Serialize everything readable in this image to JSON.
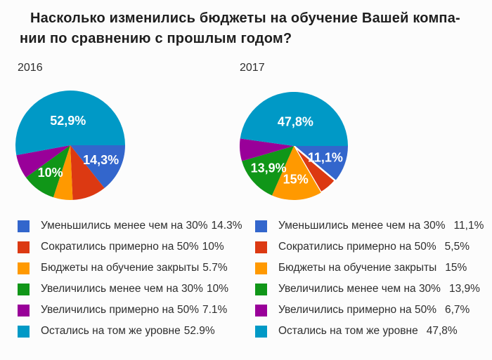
{
  "title": {
    "lines": [
      "Насколько изменились бюджеты на обучение Вашей компа-",
      "нии по сравнению с прошлым годом?"
    ]
  },
  "palette": {
    "blue": "#3366CC",
    "red": "#DC3912",
    "orange": "#FF9900",
    "green": "#109618",
    "purple": "#990099",
    "cyan": "#0099C6",
    "pie_label_color": "#ffffff"
  },
  "chart_data": [
    {
      "type": "pie",
      "title": "2016",
      "categories": [
        "Уменьшились менее чем на 30%",
        "Сократились примерно на 50%",
        "Бюджеты на обучение закрыты",
        "Увеличились менее чем на 30%",
        "Увеличились примерно на 50%",
        "Остались на том же уровне"
      ],
      "values": [
        14.3,
        10,
        5.7,
        10,
        7.1,
        52.9
      ],
      "legend_values": [
        "14.3%",
        "10%",
        "5.7%",
        "10%",
        "7.1%",
        "52.9%"
      ],
      "pie_labels": [
        "14,3%",
        null,
        null,
        "10%",
        null,
        "52,9%"
      ],
      "colors": [
        "#3366CC",
        "#DC3912",
        "#FF9900",
        "#109618",
        "#990099",
        "#0099C6"
      ],
      "separated_slices": [],
      "start_angle_deg": 0,
      "direction": "clockwise",
      "legend_position": "bottom"
    },
    {
      "type": "pie",
      "title": "2017",
      "categories": [
        "Уменьшились менее чем на 30%",
        "Сократились примерно на 50%",
        "Бюджеты на обучение закрыты",
        "Увеличились менее чем на 30%",
        "Увеличились примерно на 50%",
        "Остались на том же уровне"
      ],
      "values": [
        11.1,
        5.5,
        15,
        13.9,
        6.7,
        47.8
      ],
      "legend_values": [
        "11,1%",
        "5,5%",
        "15%",
        "13,9%",
        "6,7%",
        "47,8%"
      ],
      "pie_labels": [
        "11,1%",
        null,
        "15%",
        "13,9%",
        null,
        "47,8%"
      ],
      "colors": [
        "#3366CC",
        "#DC3912",
        "#FF9900",
        "#109618",
        "#990099",
        "#0099C6"
      ],
      "separated_slices": [
        1
      ],
      "start_angle_deg": 0,
      "direction": "clockwise",
      "legend_position": "bottom"
    }
  ]
}
